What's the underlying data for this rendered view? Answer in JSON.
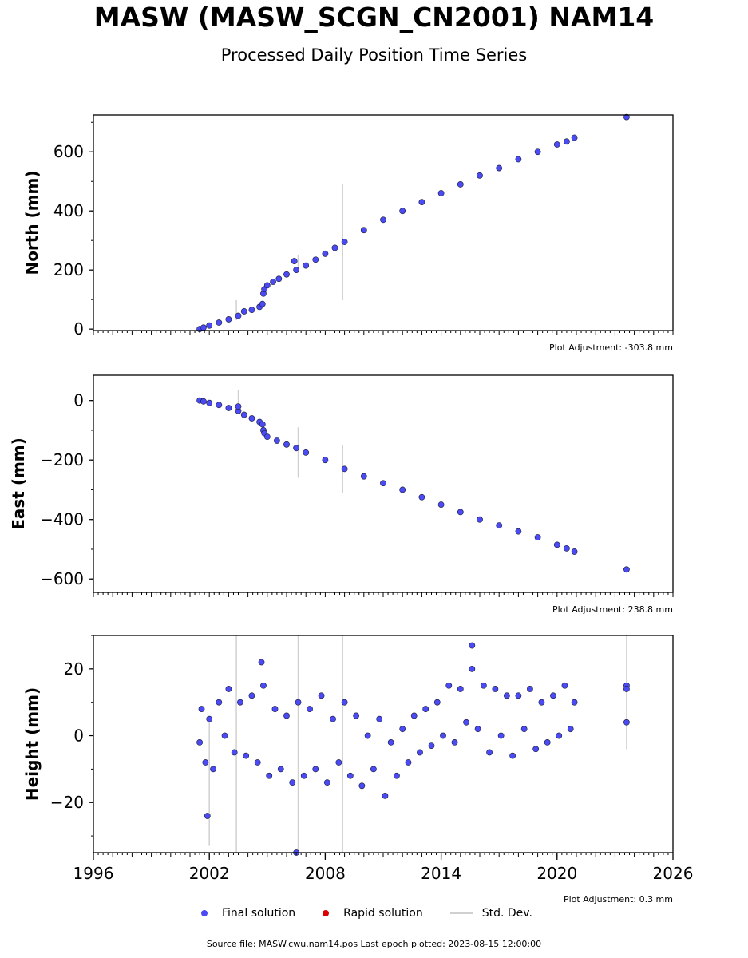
{
  "header": {
    "title": "MASW (MASW_SCGN_CN2001) NAM14",
    "subtitle": "Processed Daily Position Time Series"
  },
  "legend": {
    "final": "Final solution",
    "rapid": "Rapid solution",
    "std": "Std. Dev."
  },
  "footer": {
    "source": "Source file: MASW.cwu.nam14.pos  Last epoch plotted: 2023-08-15 12:00:00"
  },
  "colors": {
    "final": "#4b4bf5",
    "rapid": "#dd0000",
    "std": "#d0d0d0",
    "edge": "#1a1a3a"
  },
  "chart_data": [
    {
      "type": "scatter",
      "ylabel": "North (mm)",
      "adjustment": "Plot Adjustment: -303.8 mm",
      "xlim": [
        1996,
        2026
      ],
      "ylim": [
        -5,
        725
      ],
      "yticks": [
        0,
        200,
        400,
        600
      ],
      "ytick_labels": [
        "0",
        "200",
        "400",
        "600"
      ],
      "series": [
        {
          "kind": "final",
          "x": [
            2001.5,
            2001.7,
            2002.0,
            2002.5,
            2003.0,
            2003.5,
            2003.8,
            2004.2,
            2004.6,
            2004.75,
            2004.8,
            2004.85,
            2005.0,
            2005.3,
            2005.6,
            2006.0,
            2006.5,
            2007.0,
            2007.5,
            2008.0,
            2008.5,
            2009.0,
            2010.0,
            2011.0,
            2012.0,
            2013.0,
            2014.0,
            2015.0,
            2016.0,
            2017.0,
            2018.0,
            2019.0,
            2020.0,
            2020.5,
            2020.9,
            2023.6,
            2006.4
          ],
          "y": [
            0,
            5,
            12,
            22,
            33,
            45,
            60,
            65,
            75,
            85,
            120,
            135,
            148,
            160,
            170,
            185,
            200,
            215,
            235,
            255,
            275,
            295,
            335,
            370,
            400,
            430,
            460,
            490,
            520,
            545,
            575,
            600,
            625,
            635,
            648,
            718,
            230
          ]
        }
      ],
      "std_bars": [
        {
          "x": 2008.9,
          "low": 98,
          "high": 490
        },
        {
          "x": 2006.6,
          "low": 212,
          "high": 252
        },
        {
          "x": 2003.4,
          "low": 30,
          "high": 98
        }
      ]
    },
    {
      "type": "scatter",
      "ylabel": "East (mm)",
      "adjustment": "Plot Adjustment: 238.8 mm",
      "xlim": [
        1996,
        2026
      ],
      "ylim": [
        -645,
        85
      ],
      "yticks": [
        0,
        -200,
        -400,
        -600
      ],
      "ytick_labels": [
        "0",
        "−200",
        "−400",
        "−600"
      ],
      "series": [
        {
          "kind": "final",
          "x": [
            2001.5,
            2001.7,
            2002.0,
            2002.5,
            2003.0,
            2003.5,
            2003.8,
            2004.2,
            2004.6,
            2004.75,
            2004.8,
            2004.85,
            2005.0,
            2005.5,
            2006.0,
            2006.5,
            2007.0,
            2008.0,
            2009.0,
            2010.0,
            2011.0,
            2012.0,
            2013.0,
            2014.0,
            2015.0,
            2016.0,
            2017.0,
            2018.0,
            2019.0,
            2020.0,
            2020.5,
            2020.9,
            2023.6,
            2003.5
          ],
          "y": [
            0,
            -3,
            -8,
            -15,
            -25,
            -35,
            -48,
            -60,
            -72,
            -80,
            -100,
            -110,
            -122,
            -135,
            -148,
            -160,
            -175,
            -200,
            -230,
            -255,
            -278,
            -300,
            -325,
            -350,
            -375,
            -400,
            -420,
            -440,
            -460,
            -485,
            -497,
            -508,
            -568,
            -20
          ]
        }
      ],
      "std_bars": [
        {
          "x": 2006.6,
          "low": -260,
          "high": -90
        },
        {
          "x": 2008.9,
          "low": -310,
          "high": -150
        },
        {
          "x": 2003.5,
          "low": -45,
          "high": 35
        }
      ]
    },
    {
      "type": "scatter",
      "ylabel": "Height (mm)",
      "adjustment": "Plot Adjustment: 0.3 mm",
      "xlim": [
        1996,
        2026
      ],
      "ylim": [
        -35,
        30
      ],
      "xticks": [
        1996,
        2002,
        2008,
        2014,
        2020,
        2026
      ],
      "xtick_labels": [
        "1996",
        "2002",
        "2008",
        "2014",
        "2020",
        "2026"
      ],
      "yticks": [
        20,
        0,
        -20
      ],
      "ytick_labels": [
        "20",
        "0",
        "−20"
      ],
      "series": [
        {
          "kind": "final",
          "x": [
            2001.5,
            2001.6,
            2001.8,
            2002.0,
            2002.2,
            2002.5,
            2002.8,
            2003.0,
            2003.3,
            2003.6,
            2003.9,
            2004.2,
            2004.5,
            2004.8,
            2005.1,
            2005.4,
            2005.7,
            2006.0,
            2006.3,
            2006.6,
            2006.9,
            2007.2,
            2007.5,
            2007.8,
            2008.1,
            2008.4,
            2008.7,
            2009.0,
            2009.3,
            2009.6,
            2009.9,
            2010.2,
            2010.5,
            2010.8,
            2011.1,
            2011.4,
            2011.7,
            2012.0,
            2012.3,
            2012.6,
            2012.9,
            2013.2,
            2013.5,
            2013.8,
            2014.1,
            2014.4,
            2014.7,
            2015.0,
            2015.3,
            2015.6,
            2015.9,
            2016.2,
            2016.5,
            2016.8,
            2017.1,
            2017.4,
            2017.7,
            2018.0,
            2018.3,
            2018.6,
            2018.9,
            2019.2,
            2019.5,
            2019.8,
            2020.1,
            2020.4,
            2020.7,
            2020.9,
            2023.6,
            2023.6,
            2023.6,
            2001.9,
            2004.7,
            2006.5,
            2015.6
          ],
          "y": [
            -2,
            8,
            -8,
            5,
            -10,
            10,
            0,
            14,
            -5,
            10,
            -6,
            12,
            -8,
            15,
            -12,
            8,
            -10,
            6,
            -14,
            10,
            -12,
            8,
            -10,
            12,
            -14,
            5,
            -8,
            10,
            -12,
            6,
            -15,
            0,
            -10,
            5,
            -18,
            -2,
            -12,
            2,
            -8,
            6,
            -5,
            8,
            -3,
            10,
            0,
            15,
            -2,
            14,
            4,
            20,
            2,
            15,
            -5,
            14,
            0,
            12,
            -6,
            12,
            2,
            14,
            -4,
            10,
            -2,
            12,
            0,
            15,
            2,
            10,
            15,
            14,
            4,
            -24,
            22,
            -35,
            27
          ]
        }
      ],
      "std_bars": [
        {
          "x": 2003.4,
          "low": -35,
          "high": 30
        },
        {
          "x": 2006.6,
          "low": -35,
          "high": 30
        },
        {
          "x": 2008.9,
          "low": -35,
          "high": 30
        },
        {
          "x": 2023.6,
          "low": -4,
          "high": 30
        },
        {
          "x": 2002.0,
          "low": -33,
          "high": 5
        }
      ]
    }
  ]
}
